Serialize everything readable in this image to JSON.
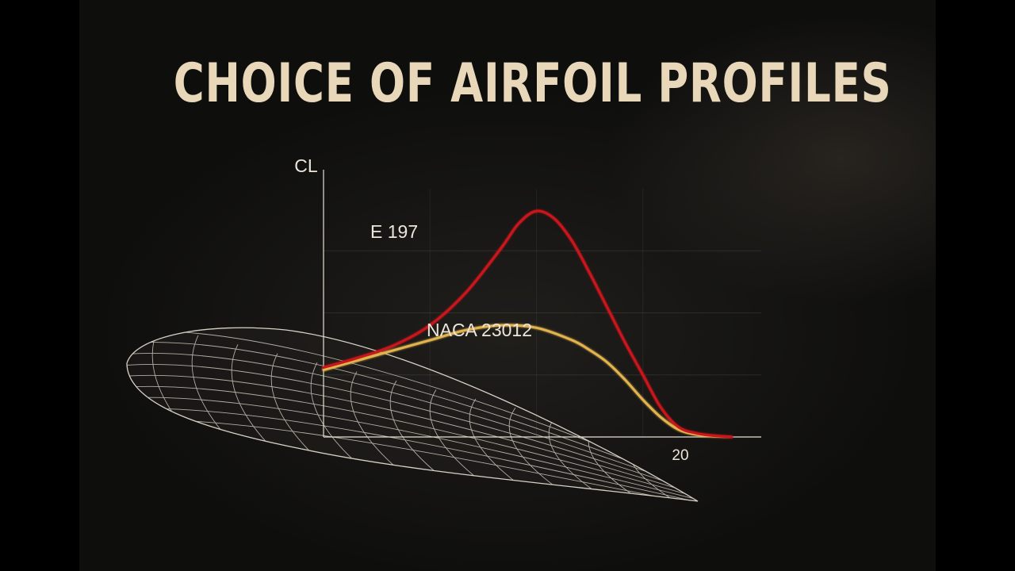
{
  "title": "CHOICE OF AIRFOIL PROFILES",
  "chart_data": {
    "type": "line",
    "title": "CHOICE OF AIRFOIL PROFILES",
    "ylabel": "CL",
    "xlabel": "",
    "x_tick_labels": [
      {
        "x": 20,
        "label": "20"
      }
    ],
    "xlim": [
      0,
      24
    ],
    "ylim": [
      0,
      1.0
    ],
    "grid": true,
    "series": [
      {
        "name": "E 197",
        "color": "#c8161b",
        "x": [
          0,
          2,
          4,
          6,
          8,
          10,
          11,
          12,
          13,
          14,
          15,
          16,
          17,
          18,
          19,
          20,
          21,
          22,
          23
        ],
        "y": [
          0.28,
          0.32,
          0.37,
          0.45,
          0.58,
          0.76,
          0.86,
          0.91,
          0.88,
          0.79,
          0.66,
          0.52,
          0.38,
          0.25,
          0.12,
          0.04,
          0.015,
          0.005,
          0.0
        ]
      },
      {
        "name": "NACA 23012",
        "color": "#e3b34e",
        "x": [
          0,
          2,
          4,
          6,
          8,
          10,
          12,
          14,
          15,
          16,
          17,
          18,
          19,
          20,
          21,
          22,
          23
        ],
        "y": [
          0.27,
          0.31,
          0.35,
          0.39,
          0.43,
          0.45,
          0.44,
          0.39,
          0.35,
          0.3,
          0.23,
          0.15,
          0.08,
          0.03,
          0.01,
          0.003,
          0.0
        ]
      }
    ]
  }
}
